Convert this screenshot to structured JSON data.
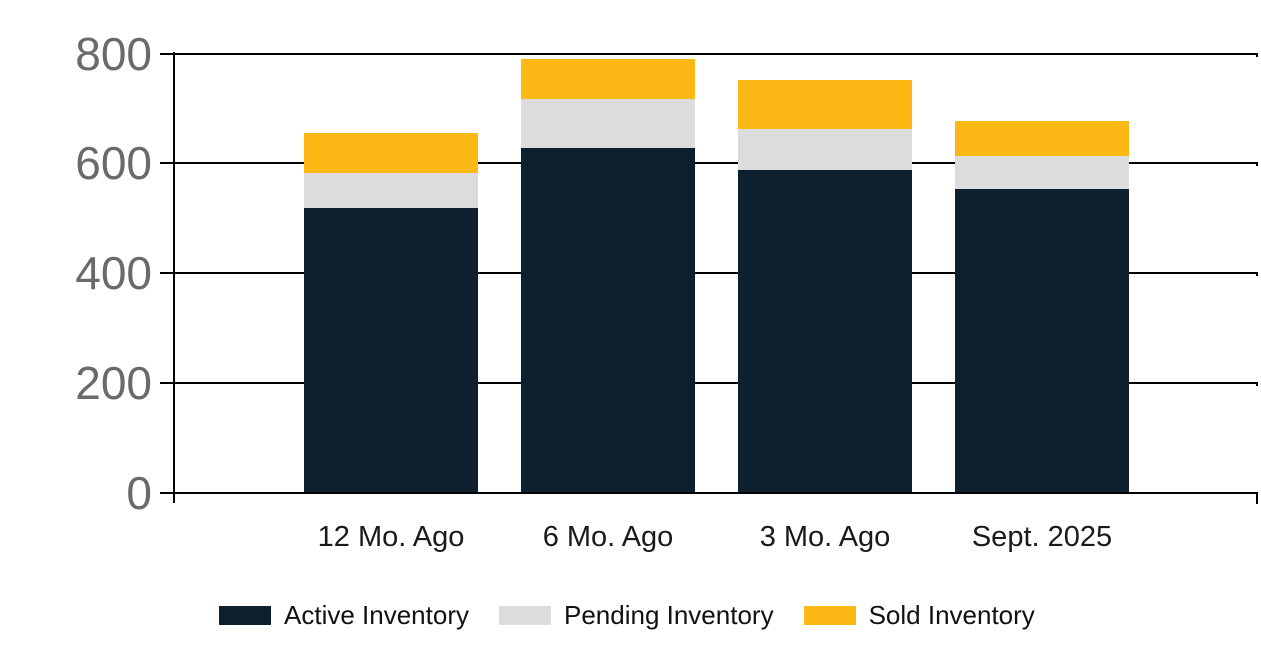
{
  "chart_data": {
    "type": "bar",
    "stacked": true,
    "title": "",
    "xlabel": "",
    "ylabel": "",
    "categories": [
      "12 Mo. Ago",
      "6 Mo. Ago",
      "3 Mo. Ago",
      "Sept. 2025"
    ],
    "series": [
      {
        "name": "Active Inventory",
        "color": "#0E202D",
        "values": [
          519,
          628,
          588,
          554
        ]
      },
      {
        "name": "Pending Inventory",
        "color": "#DCDCDC",
        "values": [
          63,
          89,
          75,
          59
        ]
      },
      {
        "name": "Sold Inventory",
        "color": "#FCB815",
        "values": [
          73,
          73,
          89,
          64
        ]
      }
    ],
    "yticks": [
      0,
      200,
      400,
      600,
      800
    ],
    "ylim": [
      0,
      800
    ],
    "grid": "horizontal",
    "legend_position": "bottom"
  },
  "colors": {
    "axis_line": "#000000",
    "y_tick_label": "#6A6A6A",
    "x_category_label": "#1A1A1A",
    "background": "#FFFFFF"
  }
}
